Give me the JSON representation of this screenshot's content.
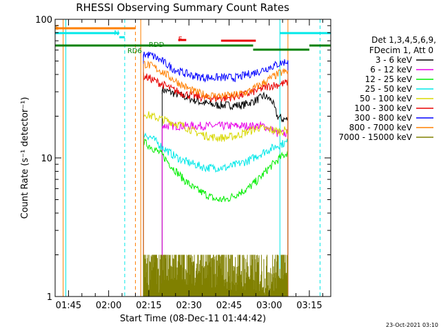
{
  "chart_data": {
    "type": "line",
    "title": "RHESSI Observing Summary Count Rates",
    "xlabel": "Start Time (08-Dec-11 01:44:42)",
    "ylabel": "Count Rate (s⁻¹ detector⁻¹)",
    "y_scale": "log",
    "ylim": [
      1,
      100
    ],
    "xlim": [
      "01:40",
      "03:23"
    ],
    "x_ticks": [
      "01:45",
      "02:00",
      "02:15",
      "02:30",
      "02:45",
      "03:00",
      "03:15"
    ],
    "y_ticks": [
      "1",
      "10",
      "100"
    ],
    "date_stamp": "23-Oct-2021 03:10",
    "legend": {
      "placement": "right",
      "header": [
        "Det 1,3,4,5,6,9,",
        "FDecim 1, Att 0"
      ],
      "entries": [
        {
          "label": "3 - 6 keV",
          "color": "#000000"
        },
        {
          "label": "6 - 12 keV",
          "color": "#e800e8"
        },
        {
          "label": "12 - 25 keV",
          "color": "#00ee00"
        },
        {
          "label": "25 - 50 keV",
          "color": "#00e8e8"
        },
        {
          "label": "50 - 100 keV",
          "color": "#d8d800"
        },
        {
          "label": "100 - 300 keV",
          "color": "#e80000"
        },
        {
          "label": "300 - 800 keV",
          "color": "#0000ff"
        },
        {
          "label": "800 - 7000 keV",
          "color": "#ff8000"
        },
        {
          "label": "7000 - 15000 keV",
          "color": "#808000"
        }
      ]
    },
    "flag_labels": {
      "saa": "S",
      "night": "N",
      "rdd": "RDD",
      "rd6": "RD6",
      "flare": "F"
    },
    "flag_colors": {
      "saa": "#ff8000",
      "night": "#00e8e8",
      "rdd": "#008000",
      "flare": "#e80000"
    },
    "series": [
      {
        "name": "3 - 6 keV",
        "color": "#000000",
        "x": [
          "02:20",
          "02:25",
          "02:30",
          "02:35",
          "02:40",
          "02:45",
          "02:50",
          "02:55",
          "02:58",
          "03:01",
          "03:03",
          "03:05",
          "03:07"
        ],
        "values": [
          31,
          29,
          27,
          25,
          24,
          24,
          24,
          26,
          28,
          26,
          20,
          19,
          19
        ]
      },
      {
        "name": "6 - 12 keV",
        "color": "#e800e8",
        "x": [
          "02:20",
          "02:25",
          "02:30",
          "02:35",
          "02:40",
          "02:45",
          "02:50",
          "02:55",
          "02:58",
          "03:01",
          "03:03",
          "03:05",
          "03:07"
        ],
        "values": [
          17,
          17,
          17,
          17,
          17,
          17,
          17,
          17,
          17,
          16,
          15,
          15,
          15
        ]
      },
      {
        "name": "12 - 25 keV",
        "color": "#00ee00",
        "x": [
          "02:13",
          "02:16",
          "02:20",
          "02:24",
          "02:28",
          "02:32",
          "02:36",
          "02:40",
          "02:44",
          "02:48",
          "02:52",
          "02:56",
          "03:00",
          "03:04",
          "03:07"
        ],
        "values": [
          13,
          12,
          10.5,
          8.5,
          7,
          6,
          5.5,
          5,
          5,
          5.5,
          6,
          7,
          8.5,
          10,
          11
        ]
      },
      {
        "name": "25 - 50 keV",
        "color": "#00e8e8",
        "x": [
          "02:13",
          "02:16",
          "02:20",
          "02:24",
          "02:28",
          "02:32",
          "02:36",
          "02:40",
          "02:44",
          "02:48",
          "02:52",
          "02:56",
          "03:00",
          "03:04",
          "03:07"
        ],
        "values": [
          15,
          14,
          12,
          10.5,
          9.5,
          9,
          8.5,
          8.5,
          8.5,
          9,
          9.5,
          10.5,
          11.5,
          12.5,
          13
        ]
      },
      {
        "name": "50 - 100 keV",
        "color": "#d8d800",
        "x": [
          "02:13",
          "02:16",
          "02:20",
          "02:24",
          "02:28",
          "02:32",
          "02:36",
          "02:40",
          "02:44",
          "02:48",
          "02:52",
          "02:56",
          "03:00",
          "03:04",
          "03:07"
        ],
        "values": [
          21,
          20,
          19,
          18,
          17,
          15.5,
          14.5,
          14,
          14,
          14.5,
          15.5,
          16.5,
          16,
          15.5,
          16
        ]
      },
      {
        "name": "100 - 300 keV",
        "color": "#e80000",
        "x": [
          "02:13",
          "02:16",
          "02:20",
          "02:24",
          "02:28",
          "02:32",
          "02:36",
          "02:40",
          "02:44",
          "02:48",
          "02:52",
          "02:56",
          "03:00",
          "03:04",
          "03:07"
        ],
        "values": [
          39,
          37,
          34,
          31,
          29,
          28,
          27,
          27,
          27,
          28,
          29,
          31,
          33,
          34,
          35
        ]
      },
      {
        "name": "300 - 800 keV",
        "color": "#0000ff",
        "x": [
          "02:13",
          "02:16",
          "02:20",
          "02:24",
          "02:28",
          "02:32",
          "02:36",
          "02:40",
          "02:44",
          "02:48",
          "02:52",
          "02:56",
          "03:00",
          "03:04",
          "03:07"
        ],
        "values": [
          56,
          55,
          50,
          44,
          41,
          39,
          38,
          38,
          38,
          38,
          40,
          42,
          45,
          48,
          50
        ]
      },
      {
        "name": "800 - 7000 keV",
        "color": "#ff8000",
        "x": [
          "02:13",
          "02:16",
          "02:20",
          "02:24",
          "02:28",
          "02:32",
          "02:36",
          "02:40",
          "02:44",
          "02:48",
          "02:52",
          "02:56",
          "03:00",
          "03:04",
          "03:07"
        ],
        "values": [
          48,
          46,
          42,
          37,
          33,
          30,
          28.5,
          28,
          28,
          28.5,
          30,
          33,
          37,
          41,
          42
        ]
      },
      {
        "name": "7000 - 15000 keV",
        "color": "#808000",
        "x": [
          "02:13",
          "02:15",
          "02:17",
          "02:19",
          "02:21",
          "02:23",
          "02:25",
          "03:02",
          "03:04",
          "03:07"
        ],
        "values": [
          1.7,
          1.3,
          1.8,
          1.2,
          1.6,
          1.4,
          1.5,
          1.2,
          1.5,
          1.7
        ]
      }
    ]
  }
}
